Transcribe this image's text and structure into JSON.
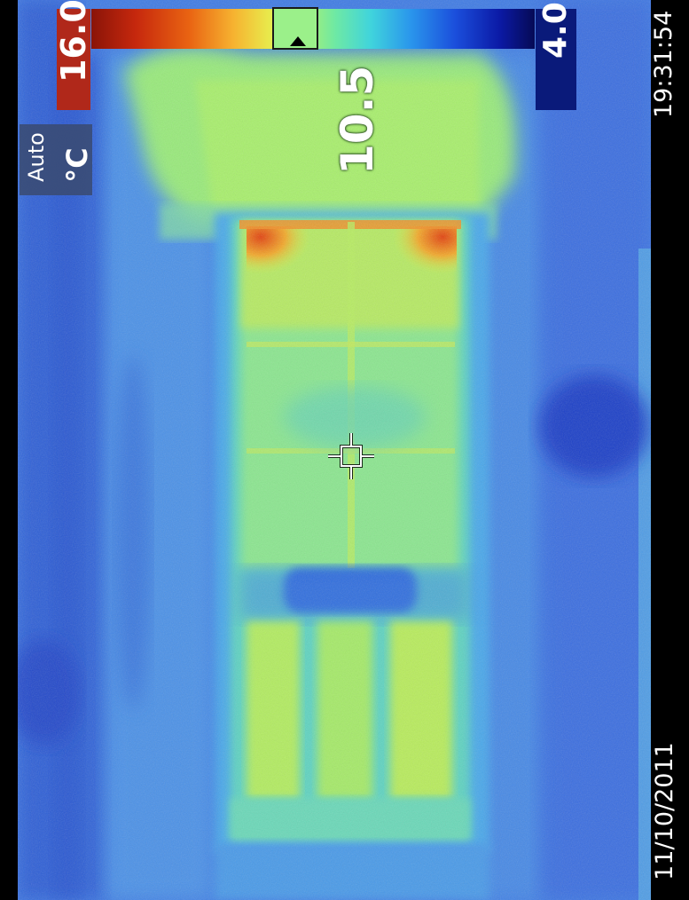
{
  "scale": {
    "max_value": "16.0",
    "min_value": "4.0",
    "mode": "Auto",
    "unit": "°C"
  },
  "spot": {
    "value": "10.5"
  },
  "timestamp": {
    "time": "19:31:54",
    "date": "11/10/2011"
  },
  "palette_colors": {
    "hot": "#8a1408",
    "warm": "#e9e94b",
    "mid": "#6ee9a4",
    "cool": "#2a96ec",
    "cold": "#060a55"
  },
  "icons": {
    "crosshair": "crosshair-icon",
    "pointer": "triangle-up-icon"
  }
}
